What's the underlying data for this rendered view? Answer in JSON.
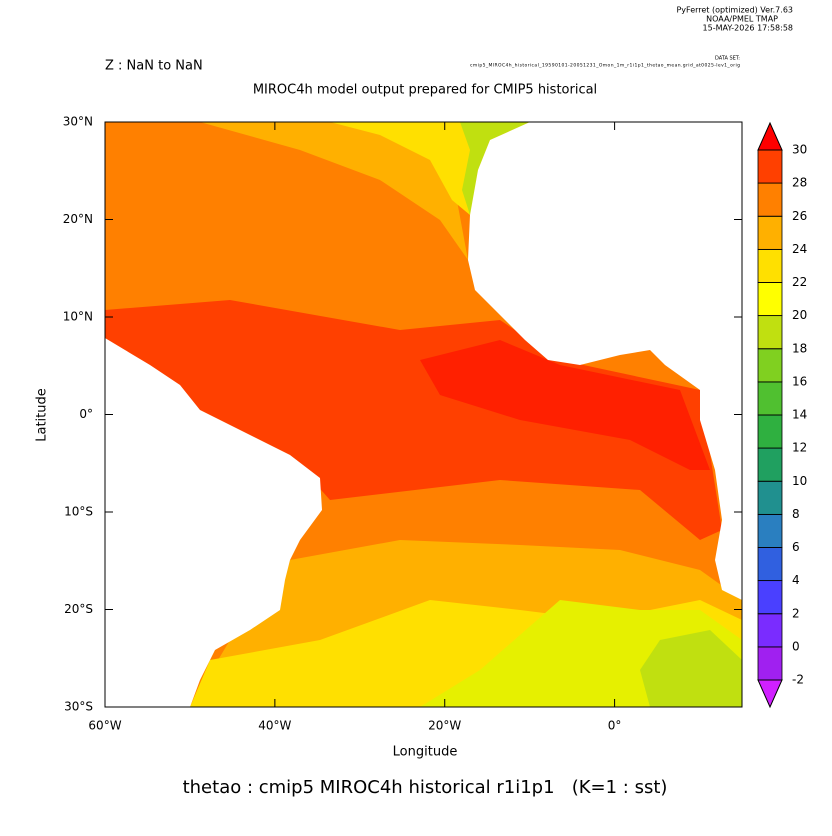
{
  "header": {
    "program": "PyFerret (optimized) Ver.7.63",
    "lab": "NOAA/PMEL TMAP",
    "date": "15-MAY-2026 17:58:58",
    "dataset_label": "DATA SET:",
    "dataset": "cmip5_MIROC4h_historical_19590101-20051231_Omon_1m_r1i1p1_thetao_mean.grid_at0025-lev1_orig"
  },
  "z_label": "Z : NaN to NaN",
  "title": "MIROC4h model output prepared for CMIP5 historical",
  "footer": "thetao : cmip5 MIROC4h historical r1i1p1   (K=1 : sst)",
  "map": {
    "xlabel": "Longitude",
    "ylabel": "Latitude",
    "xlim": [
      -60,
      15
    ],
    "ylim": [
      -30,
      30
    ],
    "xticks": [
      {
        "value": -60,
        "label": "60°W"
      },
      {
        "value": -40,
        "label": "40°W"
      },
      {
        "value": -20,
        "label": "20°W"
      },
      {
        "value": 0,
        "label": "0°"
      }
    ],
    "yticks": [
      {
        "value": 30,
        "label": "30°N"
      },
      {
        "value": 20,
        "label": "20°N"
      },
      {
        "value": 10,
        "label": "10°N"
      },
      {
        "value": 0,
        "label": "0°"
      },
      {
        "value": -10,
        "label": "10°S"
      },
      {
        "value": -20,
        "label": "20°S"
      },
      {
        "value": -30,
        "label": "30°S"
      }
    ]
  },
  "colorbar": {
    "levels": [
      -2,
      0,
      2,
      4,
      6,
      8,
      10,
      12,
      14,
      16,
      18,
      20,
      22,
      24,
      26,
      28,
      30
    ],
    "colors": [
      "#a020f0",
      "#7a2cff",
      "#4a40ff",
      "#3060e0",
      "#2a7fc0",
      "#20908f",
      "#20a060",
      "#2fb040",
      "#50c030",
      "#80d020",
      "#c0e010",
      "#ffff00",
      "#ffe000",
      "#ffb000",
      "#ff8000",
      "#ff4000"
    ],
    "under_color": "#d020ff",
    "over_color": "#ff0000"
  }
}
